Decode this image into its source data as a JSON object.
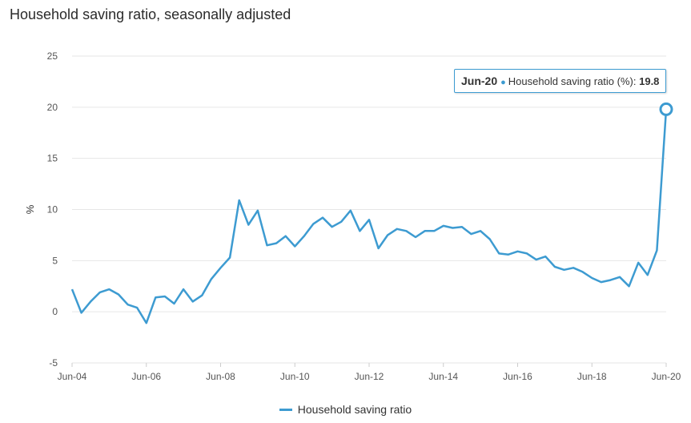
{
  "chart_data": {
    "type": "line",
    "title": "Household saving ratio, seasonally adjusted",
    "ylabel": "%",
    "xlabel": "",
    "ylim": [
      -5,
      25
    ],
    "yticks": [
      -5,
      0,
      5,
      10,
      15,
      20,
      25
    ],
    "xticks": [
      "Jun-04",
      "Jun-06",
      "Jun-08",
      "Jun-10",
      "Jun-12",
      "Jun-14",
      "Jun-16",
      "Jun-18",
      "Jun-20"
    ],
    "grid": true,
    "legend_position": "bottom",
    "x": [
      "Jun-04",
      "Sep-04",
      "Dec-04",
      "Mar-05",
      "Jun-05",
      "Sep-05",
      "Dec-05",
      "Mar-06",
      "Jun-06",
      "Sep-06",
      "Dec-06",
      "Mar-07",
      "Jun-07",
      "Sep-07",
      "Dec-07",
      "Mar-08",
      "Jun-08",
      "Sep-08",
      "Dec-08",
      "Mar-09",
      "Jun-09",
      "Sep-09",
      "Dec-09",
      "Mar-10",
      "Jun-10",
      "Sep-10",
      "Dec-10",
      "Mar-11",
      "Jun-11",
      "Sep-11",
      "Dec-11",
      "Mar-12",
      "Jun-12",
      "Sep-12",
      "Dec-12",
      "Mar-13",
      "Jun-13",
      "Sep-13",
      "Dec-13",
      "Mar-14",
      "Jun-14",
      "Sep-14",
      "Dec-14",
      "Mar-15",
      "Jun-15",
      "Sep-15",
      "Dec-15",
      "Mar-16",
      "Jun-16",
      "Sep-16",
      "Dec-16",
      "Mar-17",
      "Jun-17",
      "Sep-17",
      "Dec-17",
      "Mar-18",
      "Jun-18",
      "Sep-18",
      "Dec-18",
      "Mar-19",
      "Jun-19",
      "Sep-19",
      "Dec-19",
      "Mar-20",
      "Jun-20"
    ],
    "series": [
      {
        "name": "Household saving ratio",
        "color": "#3d9bd1",
        "values": [
          2.2,
          -0.1,
          1.0,
          1.9,
          2.2,
          1.7,
          0.7,
          0.4,
          -1.1,
          1.4,
          1.5,
          0.8,
          2.2,
          1.0,
          1.6,
          3.2,
          4.3,
          5.3,
          10.9,
          8.5,
          9.9,
          6.5,
          6.7,
          7.4,
          6.4,
          7.4,
          8.6,
          9.2,
          8.3,
          8.8,
          9.9,
          7.9,
          9.0,
          6.2,
          7.5,
          8.1,
          7.9,
          7.3,
          7.9,
          7.9,
          8.4,
          8.2,
          8.3,
          7.6,
          7.9,
          7.1,
          5.7,
          5.6,
          5.9,
          5.7,
          5.1,
          5.4,
          4.4,
          4.1,
          4.3,
          3.9,
          3.3,
          2.9,
          3.1,
          3.4,
          2.5,
          4.8,
          3.6,
          6.0,
          19.8
        ]
      }
    ],
    "tooltip": {
      "date": "Jun-20",
      "label": "Household saving ratio (%):",
      "value": "19.8"
    }
  }
}
